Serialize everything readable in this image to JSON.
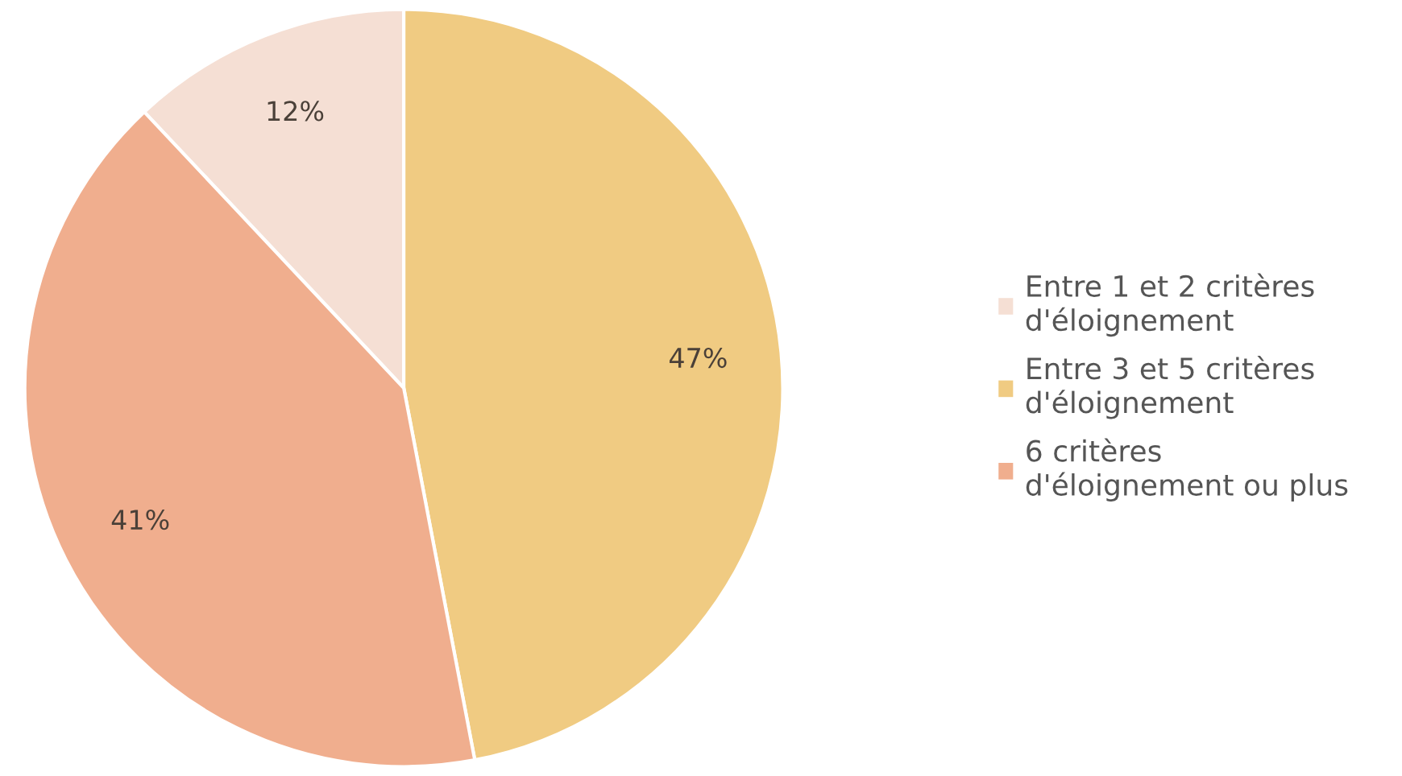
{
  "chart_data": {
    "type": "pie",
    "categories": [
      "Entre 1 et 2 critères\nd'éloignement",
      "Entre 3 et 5 critères\nd'éloignement",
      "6 critères\nd'éloignement ou plus"
    ],
    "values": [
      12,
      47,
      41
    ],
    "value_labels": [
      "12%",
      "47%",
      "41%"
    ],
    "colors": [
      "#f5dfd4",
      "#f0cb82",
      "#f0ae8e"
    ],
    "legend": "right"
  }
}
